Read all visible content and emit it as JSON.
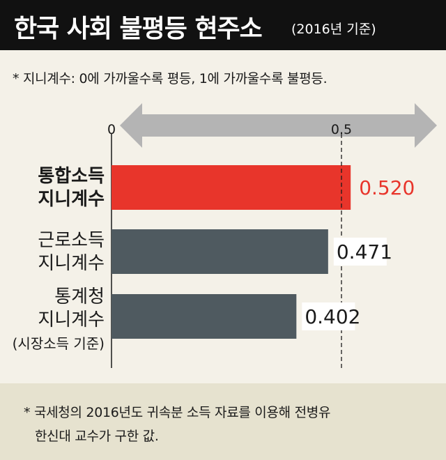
{
  "header": {
    "title": "한국 사회 불평등 현주소",
    "subtitle": "(2016년 기준)"
  },
  "note": "* 지니계수: 0에 가까울수록 평등, 1에 가까울수록 불평등.",
  "footer": {
    "line1": "* 국세청의 2016년도 귀속분 소득 자료를 이용해 전병유",
    "line2": "한신대 교수가 구한 값."
  },
  "colors": {
    "highlight": "#e8352b",
    "bar": "#4f5a60",
    "arrow": "#b4b4b4"
  },
  "chart_data": {
    "type": "bar",
    "orientation": "horizontal",
    "tick_labels": [
      "0",
      "0.5"
    ],
    "reference_line": 0.5,
    "categories": [
      {
        "lines": [
          "통합소득",
          "지니계수"
        ],
        "bold": true
      },
      {
        "lines": [
          "근로소득",
          "지니계수"
        ],
        "bold": false
      },
      {
        "lines": [
          "통계청",
          "지니계수",
          "(시장소득 기준)"
        ],
        "bold": false
      }
    ],
    "values": [
      0.52,
      0.471,
      0.402
    ],
    "value_labels": [
      "0.520",
      "0.471",
      "0.402"
    ],
    "highlight_index": 0,
    "xlim": [
      0,
      1
    ]
  }
}
